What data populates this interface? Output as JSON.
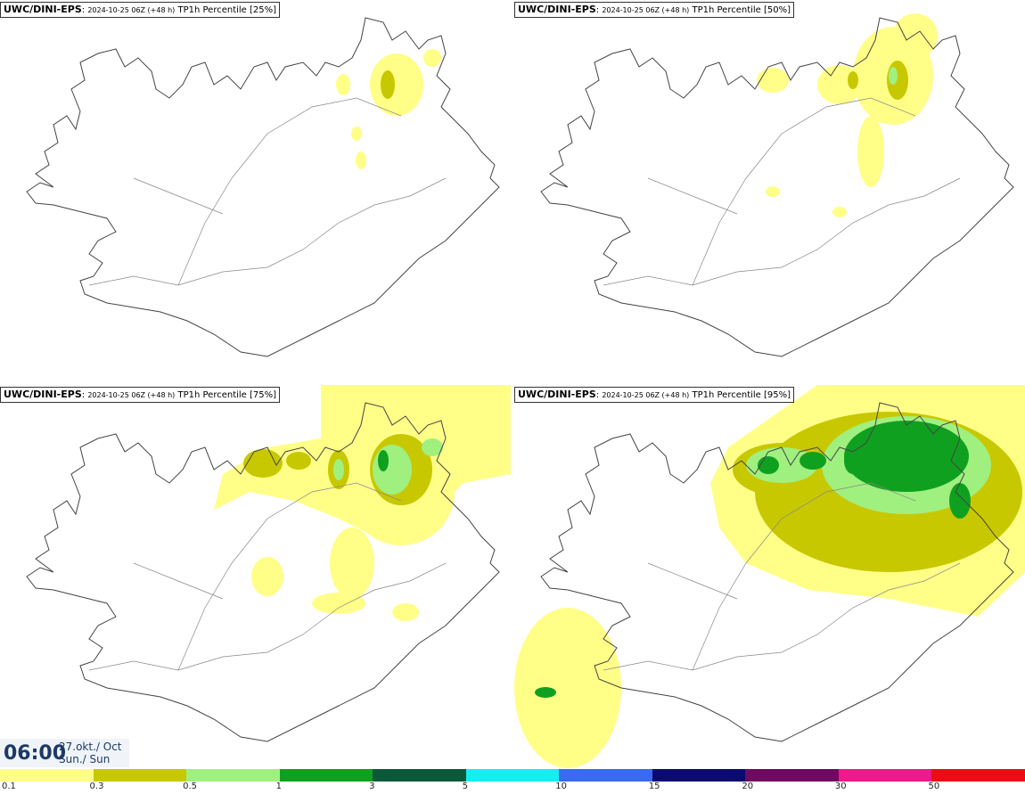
{
  "panels": [
    {
      "model": "UWC/DINI-EPS",
      "run": "2024-10-25 06Z (+48 h)",
      "field": "TP1h Percentile [25%]"
    },
    {
      "model": "UWC/DINI-EPS",
      "run": "2024-10-25 06Z (+48 h)",
      "field": "TP1h Percentile [50%]"
    },
    {
      "model": "UWC/DINI-EPS",
      "run": "2024-10-25 06Z (+48 h)",
      "field": "TP1h Percentile [75%]"
    },
    {
      "model": "UWC/DINI-EPS",
      "run": "2024-10-25 06Z (+48 h)",
      "field": "TP1h Percentile [95%]"
    }
  ],
  "valid_time": {
    "time": "06:00",
    "date_line1": "27.okt./ Oct",
    "date_line2": "Sun./ Sun"
  },
  "legend": [
    {
      "label": "0.1",
      "color": "#ffff88"
    },
    {
      "label": "0.3",
      "color": "#c8c800"
    },
    {
      "label": "0.5",
      "color": "#a0f080"
    },
    {
      "label": "1",
      "color": "#10a020"
    },
    {
      "label": "3",
      "color": "#0a5a3a"
    },
    {
      "label": "5",
      "color": "#10f0f0"
    },
    {
      "label": "10",
      "color": "#3a6af0"
    },
    {
      "label": "15",
      "color": "#0a0a70"
    },
    {
      "label": "20",
      "color": "#700a60"
    },
    {
      "label": "30",
      "color": "#f0188a"
    },
    {
      "label": "50",
      "color": "#f00a14"
    }
  ]
}
